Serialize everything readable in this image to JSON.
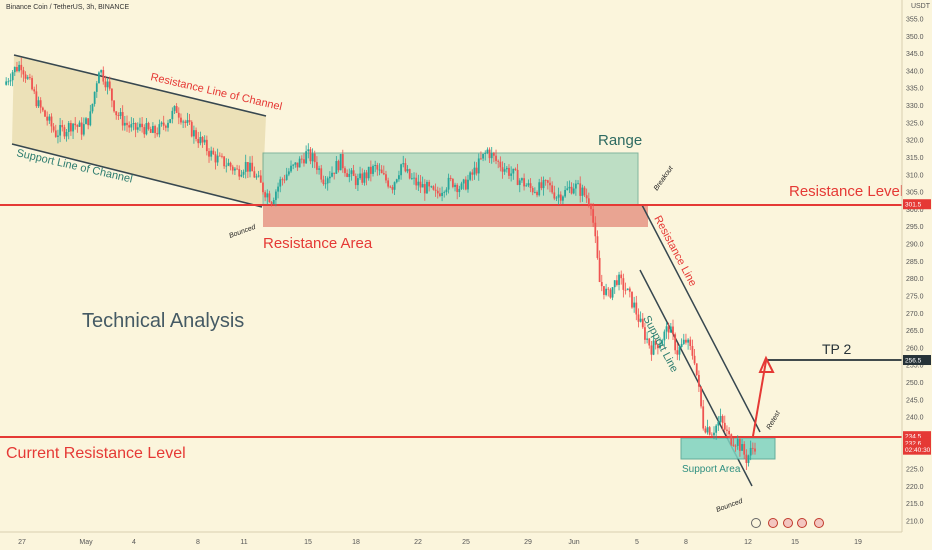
{
  "header": {
    "symbol_title": "Binance Coin / TetherUS, 3h, BINANCE",
    "currency": "USDT"
  },
  "chart_data": {
    "type": "candlestick",
    "ylim": [
      210,
      355
    ],
    "y_ticks": [
      355,
      350,
      345,
      340,
      335,
      330,
      325,
      320,
      315,
      310,
      305,
      300,
      295,
      290,
      285,
      280,
      275,
      270,
      265,
      260,
      255,
      250,
      245,
      240,
      235,
      230,
      225,
      220,
      215,
      210
    ],
    "x_ticks": [
      "27",
      "May",
      "4",
      "8",
      "11",
      "15",
      "18",
      "22",
      "25",
      "29",
      "Jun",
      "5",
      "8",
      "12",
      "15",
      "19"
    ],
    "price_labels": [
      {
        "value": "301.5",
        "price": 301.5,
        "color": "#e53935"
      },
      {
        "value": "256.5",
        "price": 256.5,
        "color": "#263238"
      },
      {
        "value": "234.5",
        "price": 234.5,
        "color": "#e53935"
      },
      {
        "value": "232.6",
        "price": 232.6,
        "color": "#e53935"
      },
      {
        "value": "02:40:30",
        "price": 230.6,
        "color": "#e53935"
      }
    ],
    "candles_close_path": [
      [
        0,
        336
      ],
      [
        1,
        340
      ],
      [
        2,
        342
      ],
      [
        3,
        336
      ],
      [
        4,
        330
      ],
      [
        5,
        326
      ],
      [
        6,
        322
      ],
      [
        7,
        323
      ],
      [
        8,
        325
      ],
      [
        9,
        323
      ],
      [
        10,
        327
      ],
      [
        11,
        341
      ],
      [
        12,
        336
      ],
      [
        13,
        328
      ],
      [
        14,
        325
      ],
      [
        15,
        323
      ],
      [
        16,
        324
      ],
      [
        17,
        322
      ],
      [
        18,
        323
      ],
      [
        19,
        326
      ],
      [
        20,
        329
      ],
      [
        21,
        325
      ],
      [
        22,
        322
      ],
      [
        23,
        319
      ],
      [
        24,
        316
      ],
      [
        25,
        314
      ],
      [
        26,
        313
      ],
      [
        27,
        311
      ],
      [
        28,
        313
      ],
      [
        29,
        310
      ],
      [
        30,
        306
      ],
      [
        31,
        303
      ],
      [
        32,
        308
      ],
      [
        33,
        311
      ],
      [
        34,
        313
      ],
      [
        35,
        316
      ],
      [
        36,
        314
      ],
      [
        37,
        309
      ],
      [
        38,
        311
      ],
      [
        39,
        314
      ],
      [
        40,
        310
      ],
      [
        41,
        308
      ],
      [
        42,
        310
      ],
      [
        43,
        312
      ],
      [
        44,
        309
      ],
      [
        45,
        307
      ],
      [
        46,
        313
      ],
      [
        47,
        309
      ],
      [
        48,
        307
      ],
      [
        49,
        306
      ],
      [
        50,
        304
      ],
      [
        51,
        307
      ],
      [
        52,
        308
      ],
      [
        53,
        306
      ],
      [
        54,
        309
      ],
      [
        55,
        313
      ],
      [
        56,
        317
      ],
      [
        57,
        314
      ],
      [
        58,
        312
      ],
      [
        59,
        310
      ],
      [
        60,
        308
      ],
      [
        61,
        306
      ],
      [
        62,
        306
      ],
      [
        63,
        307
      ],
      [
        64,
        304
      ],
      [
        65,
        305
      ],
      [
        66,
        307
      ],
      [
        67,
        305
      ],
      [
        68,
        302
      ],
      [
        69,
        279
      ],
      [
        70,
        275
      ],
      [
        71,
        280
      ],
      [
        72,
        277
      ],
      [
        73,
        272
      ],
      [
        74,
        265
      ],
      [
        75,
        260
      ],
      [
        76,
        262
      ],
      [
        77,
        266
      ],
      [
        78,
        259
      ],
      [
        79,
        262
      ],
      [
        80,
        257
      ],
      [
        81,
        238
      ],
      [
        82,
        236
      ],
      [
        83,
        239
      ],
      [
        84,
        234
      ],
      [
        85,
        233
      ],
      [
        86,
        228
      ],
      [
        87,
        232
      ]
    ],
    "annotations": {
      "channel_resistance": "Resistance Line of Channel",
      "channel_support": "Support Line of Channel",
      "range": "Range",
      "breakout": "Breakout",
      "resistance_level": "Resistance Level",
      "resistance_area": "Resistance Area",
      "bounced_1": "Bounced",
      "technical_analysis": "Technical Analysis",
      "resistance_line": "Resistance Line",
      "support_line": "Support Line",
      "tp2": "TP 2",
      "retest": "Retest",
      "current_resistance": "Current Resistance Level",
      "support_area": "Support Area",
      "bounced_2": "Bounced"
    },
    "levels": {
      "resistance_level": 301.5,
      "current_resistance": 234.5,
      "tp2": 256.5
    },
    "colors": {
      "bull": "#26a69a",
      "bear": "#ef5350",
      "red_line": "#e53935",
      "channel_fill": "#e8dcb0",
      "range_fill": "#a9d7bd",
      "resistance_area_fill": "#e79b8a",
      "support_area_fill": "#7fd3c2",
      "ta_text": "#455a64",
      "range_text": "#2e6b62",
      "background": "#fbf5dc"
    }
  }
}
